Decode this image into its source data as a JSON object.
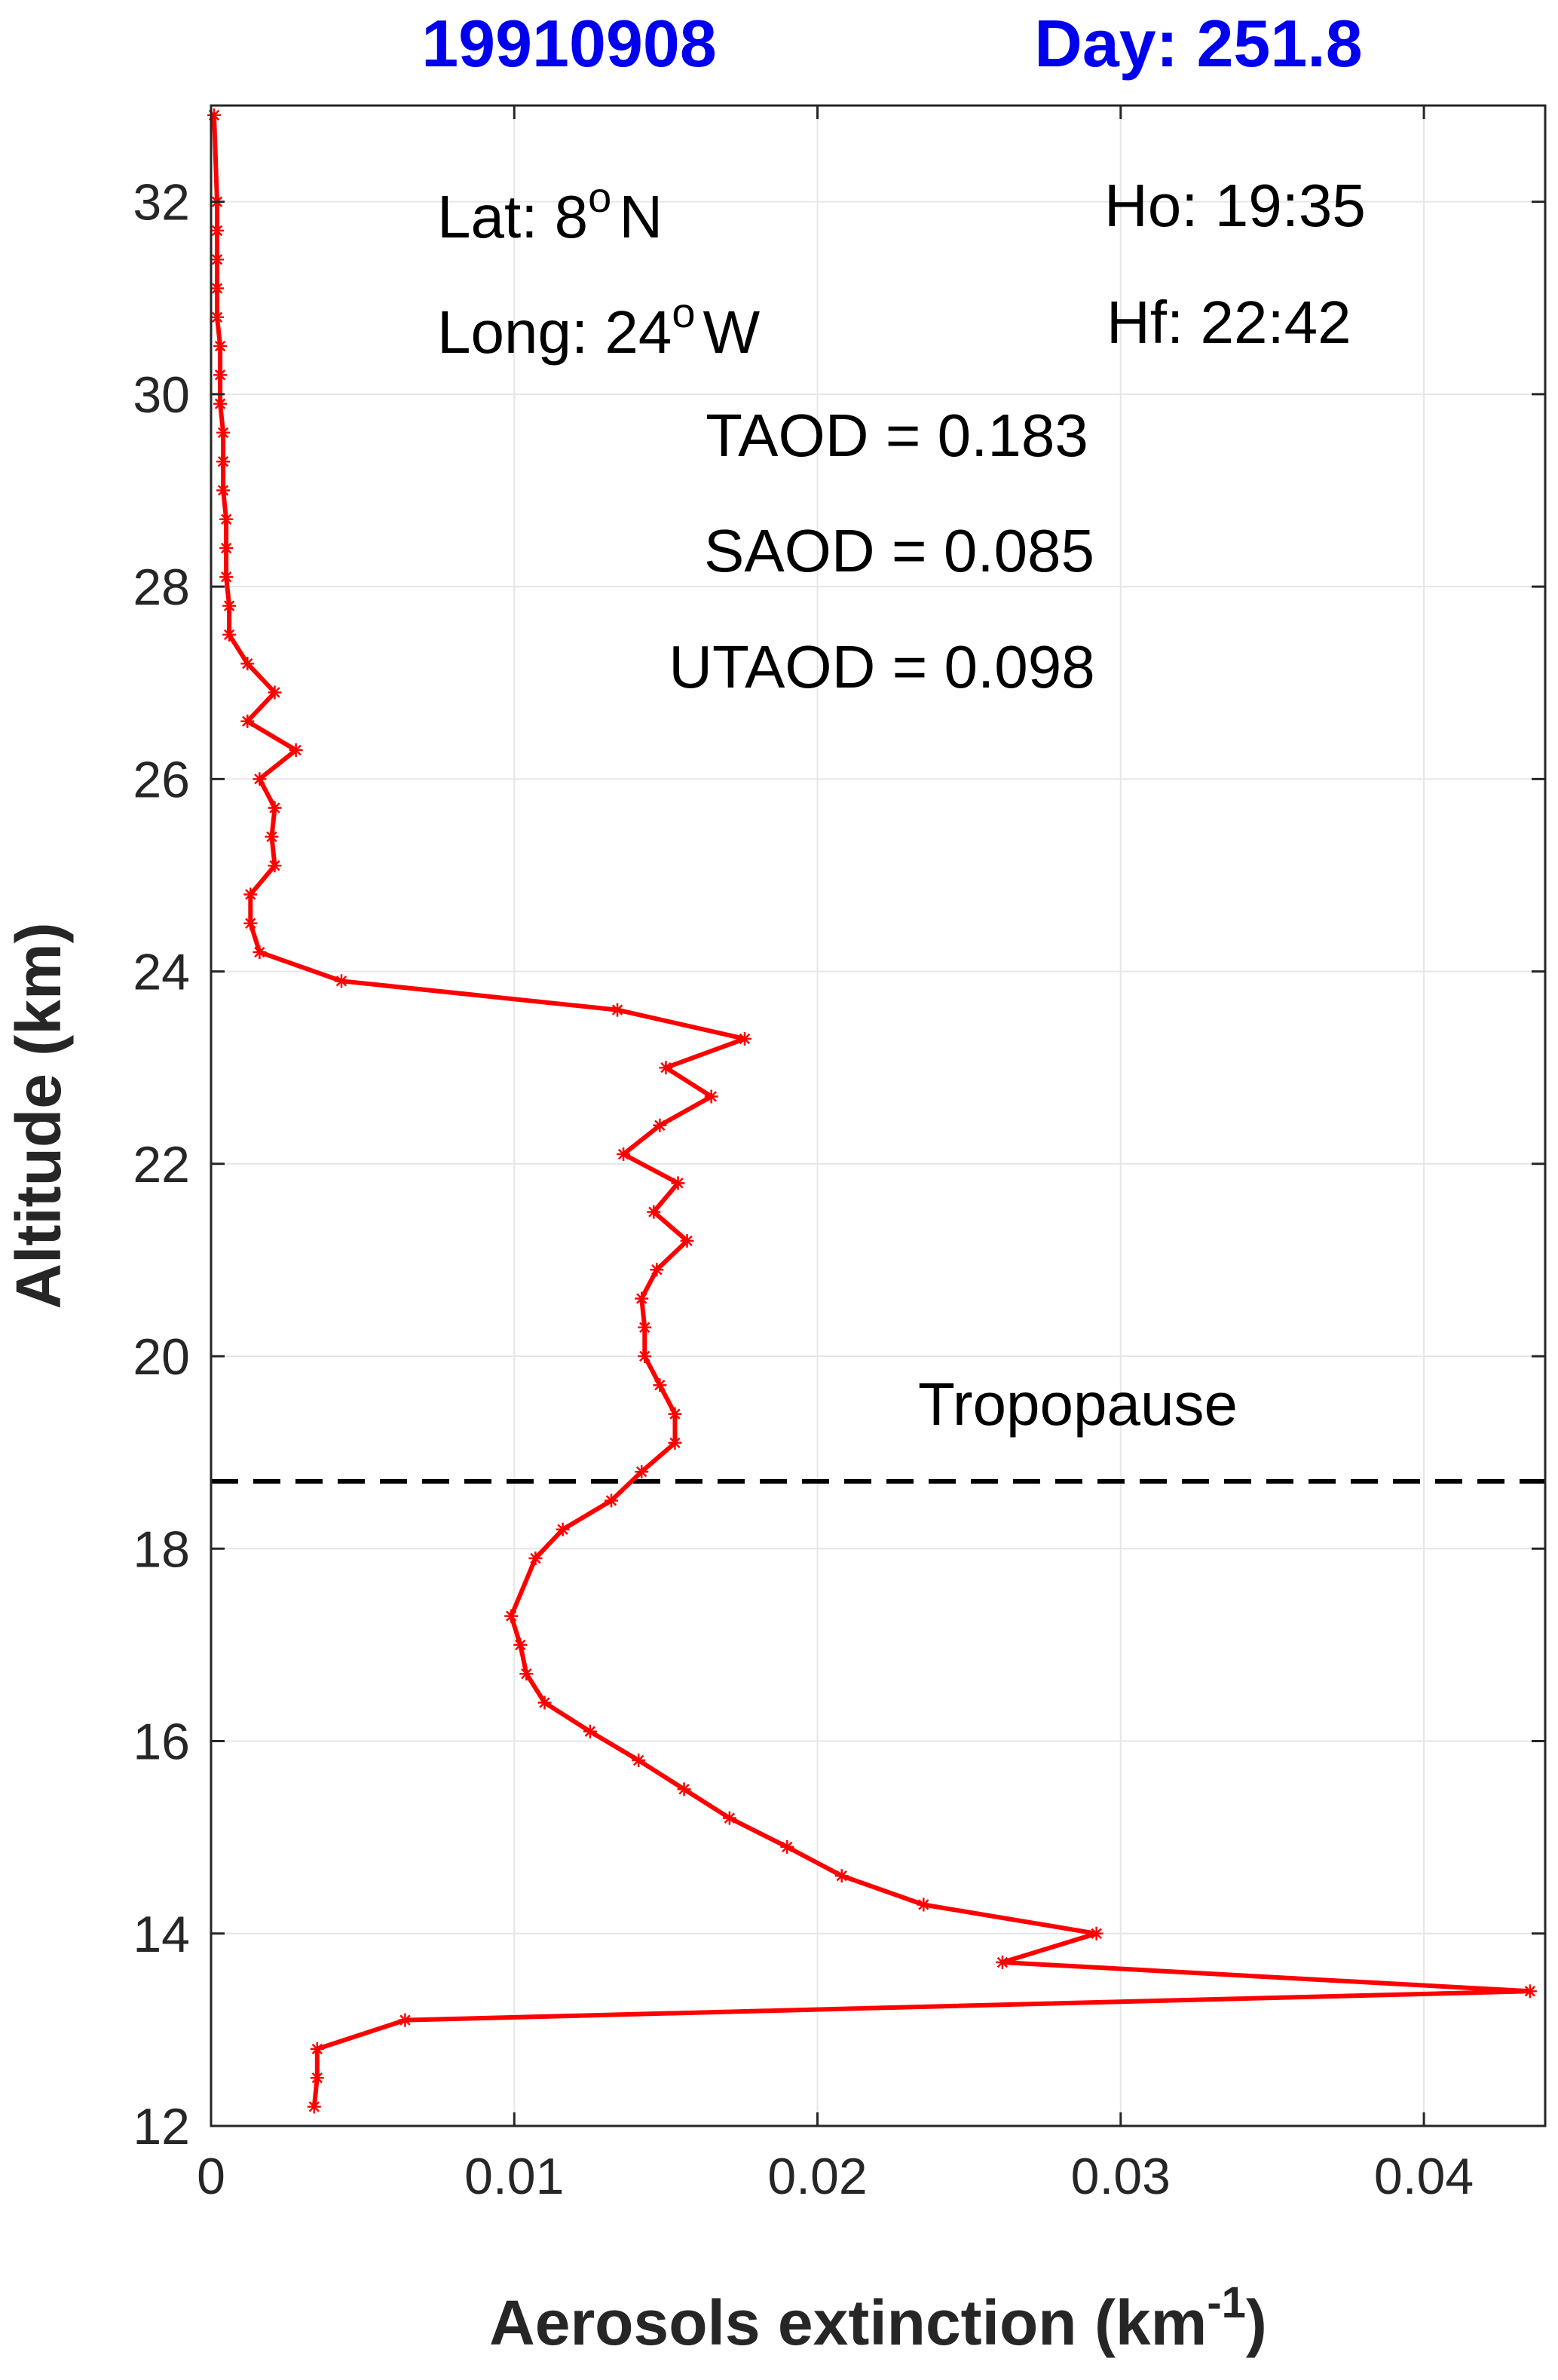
{
  "header": {
    "date": "19910908",
    "day": "Day: 251.8"
  },
  "colors": {
    "title": "#0000ee",
    "series": "#ff0000",
    "tropopause": "#000000"
  },
  "chart_data": {
    "type": "line",
    "xlabel_main": "Aerosols extinction (km",
    "xlabel_sup": "-1",
    "xlabel_end": ")",
    "ylabel": "Altitude (km)",
    "xlim": [
      0,
      0.044
    ],
    "ylim": [
      12,
      33
    ],
    "xticks": [
      0,
      0.01,
      0.02,
      0.03,
      0.04
    ],
    "xtick_labels": [
      "0",
      "0.01",
      "0.02",
      "0.03",
      "0.04"
    ],
    "yticks": [
      12,
      14,
      16,
      18,
      20,
      22,
      24,
      26,
      28,
      30,
      32
    ],
    "ytick_labels": [
      "12",
      "14",
      "16",
      "18",
      "20",
      "22",
      "24",
      "26",
      "28",
      "30",
      "32"
    ],
    "grid": true,
    "marker": "asterisk",
    "series": [
      {
        "x": [
          0.0034,
          0.0035,
          0.0035,
          0.0064,
          0.0435,
          0.0261,
          0.0292,
          0.0235,
          0.0208,
          0.019,
          0.0171,
          0.0156,
          0.0141,
          0.0125,
          0.011,
          0.0104,
          0.0102,
          0.0099,
          0.0107,
          0.0116,
          0.0132,
          0.0142,
          0.0153,
          0.0153,
          0.0148,
          0.0143,
          0.0143,
          0.0142,
          0.0147,
          0.0157,
          0.0146,
          0.0154,
          0.0136,
          0.0148,
          0.0165,
          0.015,
          0.0176,
          0.0134,
          0.0043,
          0.0016,
          0.0013,
          0.0013,
          0.0021,
          0.002,
          0.0021,
          0.0016,
          0.0028,
          0.0012,
          0.0021,
          0.0012,
          0.0006,
          0.0006,
          0.0005,
          0.0005,
          0.0005,
          0.0004,
          0.0004,
          0.0004,
          0.0003,
          0.0003,
          0.0003,
          0.0002,
          0.0002,
          0.0002,
          0.0002,
          0.0002,
          0.0001
        ],
        "y": [
          12.2,
          12.5,
          12.8,
          13.1,
          13.4,
          13.7,
          14.0,
          14.3,
          14.6,
          14.9,
          15.2,
          15.5,
          15.8,
          16.1,
          16.4,
          16.7,
          17.0,
          17.3,
          17.9,
          18.2,
          18.5,
          18.8,
          19.1,
          19.4,
          19.7,
          20.0,
          20.3,
          20.6,
          20.9,
          21.2,
          21.5,
          21.8,
          22.1,
          22.4,
          22.7,
          23.0,
          23.3,
          23.6,
          23.9,
          24.2,
          24.5,
          24.8,
          25.1,
          25.4,
          25.7,
          26.0,
          26.3,
          26.6,
          26.9,
          27.2,
          27.5,
          27.8,
          28.1,
          28.4,
          28.7,
          29.0,
          29.3,
          29.6,
          29.9,
          30.2,
          30.5,
          30.8,
          31.1,
          31.4,
          31.7,
          32.0,
          32.9
        ]
      }
    ],
    "tropopause_altitude": 18.7,
    "annotations": {
      "lat_main": "Lat: 8",
      "lat_sup": "o",
      "lat_end": "N",
      "long_main": "Long: 24",
      "long_sup": "o",
      "long_end": "W",
      "ho": "Ho: 19:35",
      "hf": "Hf: 22:42",
      "taod": "TAOD = 0.183",
      "saod": "SAOD = 0.085",
      "utaod": "UTAOD = 0.098",
      "tropopause": "Tropopause"
    }
  }
}
